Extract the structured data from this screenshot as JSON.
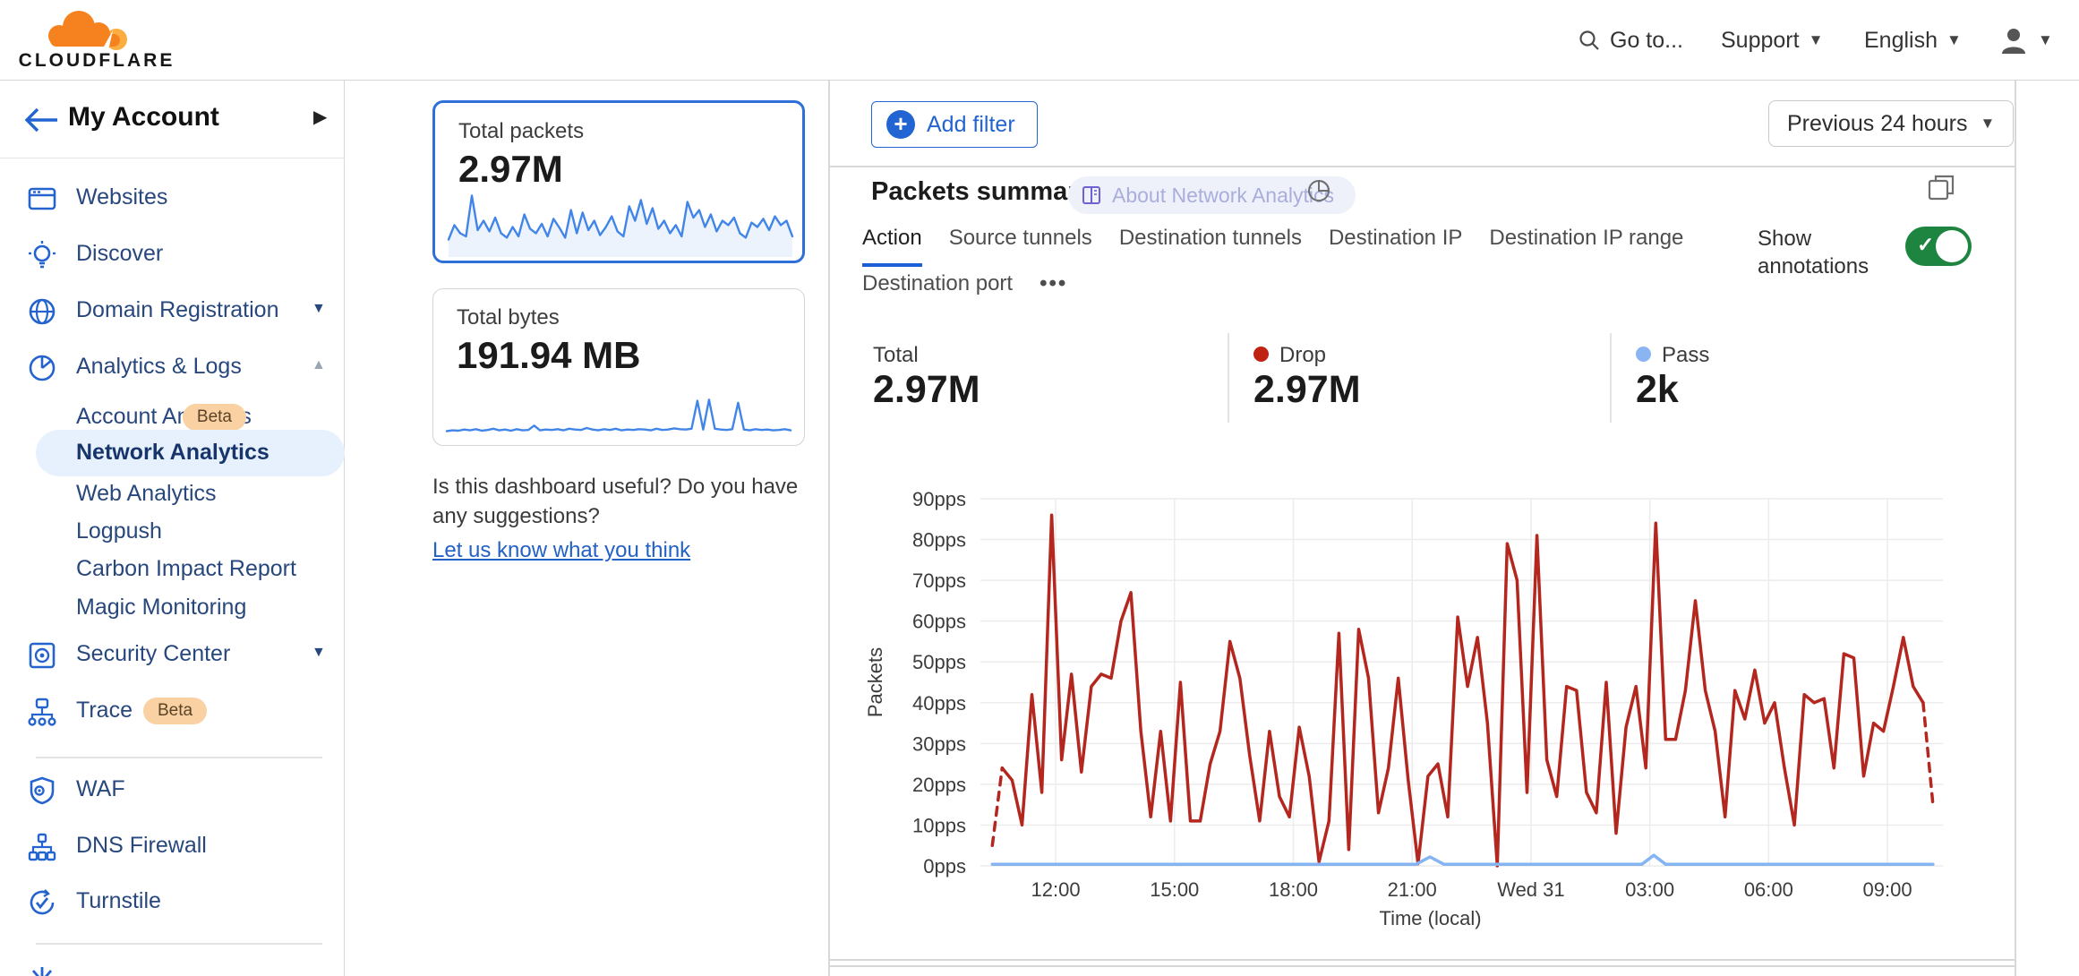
{
  "header": {
    "logo_text": "CLOUDFLARE",
    "goto_label": "Go to...",
    "support_label": "Support",
    "language_label": "English"
  },
  "sidebar": {
    "account_label": "My Account",
    "items": [
      {
        "label": "Websites",
        "icon": "browser-window"
      },
      {
        "label": "Discover",
        "icon": "lightbulb"
      },
      {
        "label": "Domain Registration",
        "icon": "globe",
        "caret": "down"
      },
      {
        "label": "Analytics & Logs",
        "icon": "pie-chart",
        "caret": "up",
        "expanded": true
      },
      {
        "label": "Account Analytics",
        "badge": "Beta",
        "sub": true
      },
      {
        "label": "Network Analytics",
        "sub": true,
        "selected": true
      },
      {
        "label": "Web Analytics",
        "sub": true
      },
      {
        "label": "Logpush",
        "sub": true
      },
      {
        "label": "Carbon Impact Report",
        "sub": true
      },
      {
        "label": "Magic Monitoring",
        "sub": true
      },
      {
        "label": "Security Center",
        "icon": "safe",
        "caret": "down"
      },
      {
        "label": "Trace",
        "icon": "trace-nodes",
        "badge": "Beta"
      },
      {
        "label": "WAF",
        "icon": "shield-gear"
      },
      {
        "label": "DNS Firewall",
        "icon": "hierarchy"
      },
      {
        "label": "Turnstile",
        "icon": "rotate-check"
      }
    ]
  },
  "overview_cards": [
    {
      "title": "Total packets",
      "value": "2.97M",
      "selected": true,
      "spark": {
        "color": "#4285e8",
        "fill": true,
        "values": [
          25,
          48,
          35,
          30,
          95,
          40,
          55,
          38,
          60,
          35,
          28,
          45,
          30,
          65,
          42,
          35,
          50,
          30,
          58,
          44,
          28,
          72,
          35,
          68,
          40,
          55,
          32,
          45,
          62,
          38,
          30,
          78,
          55,
          88,
          50,
          75,
          42,
          55,
          35,
          48,
          30,
          85,
          60,
          72,
          45,
          65,
          38,
          55,
          48,
          60,
          35,
          28,
          52,
          45,
          58,
          40,
          62,
          48,
          55,
          30
        ]
      }
    },
    {
      "title": "Total bytes",
      "value": "191.94 MB",
      "selected": false,
      "spark": {
        "color": "#4285e8",
        "fill": false,
        "values": [
          8,
          10,
          9,
          12,
          10,
          13,
          9,
          11,
          14,
          10,
          12,
          9,
          13,
          10,
          11,
          22,
          10,
          12,
          11,
          13,
          10,
          14,
          12,
          11,
          16,
          12,
          10,
          13,
          11,
          14,
          10,
          12,
          11,
          13,
          12,
          10,
          14,
          11,
          12,
          15,
          13,
          12,
          14,
          85,
          12,
          88,
          14,
          12,
          11,
          13,
          80,
          12,
          10,
          13,
          11,
          12,
          10,
          11,
          13,
          10
        ]
      }
    }
  ],
  "feedback": {
    "question": "Is this dashboard useful? Do you have any suggestions?",
    "link": "Let us know what you think"
  },
  "toolbar": {
    "add_filter_label": "Add filter",
    "time_range_label": "Previous 24 hours"
  },
  "packets_summary": {
    "title": "Packets summary",
    "about_badge": "About Network Analytics",
    "tabs": [
      "Action",
      "Source tunnels",
      "Destination tunnels",
      "Destination IP",
      "Destination IP range",
      "Destination port"
    ],
    "active_tab": "Action",
    "more_tabs": "...",
    "show_annotations_label": "Show annotations",
    "annotations_on": true,
    "toggle_color": "#1e8540",
    "stats": [
      {
        "label": "Total",
        "value": "2.97M",
        "dot": null
      },
      {
        "label": "Drop",
        "value": "2.97M",
        "dot": "#bf2413"
      },
      {
        "label": "Pass",
        "value": "2k",
        "dot": "#8ab5f2"
      }
    ]
  },
  "chart_data": {
    "type": "line",
    "title": "Packets summary",
    "xlabel": "Time (local)",
    "ylabel": "Packets",
    "x_unit_note": "hours of day; 24 = midnight Wed 31",
    "xlim": [
      10.1,
      34.4
    ],
    "ylim": [
      0,
      90
    ],
    "grid": true,
    "legend_position": "none",
    "x_ticks": [
      {
        "v": 12,
        "label": "12:00"
      },
      {
        "v": 15,
        "label": "15:00"
      },
      {
        "v": 18,
        "label": "18:00"
      },
      {
        "v": 21,
        "label": "21:00"
      },
      {
        "v": 24,
        "label": "Wed 31"
      },
      {
        "v": 27,
        "label": "03:00"
      },
      {
        "v": 30,
        "label": "06:00"
      },
      {
        "v": 33,
        "label": "09:00"
      }
    ],
    "y_ticks": [
      {
        "v": 0,
        "label": "0pps"
      },
      {
        "v": 10,
        "label": "10pps"
      },
      {
        "v": 20,
        "label": "20pps"
      },
      {
        "v": 30,
        "label": "30pps"
      },
      {
        "v": 40,
        "label": "40pps"
      },
      {
        "v": 50,
        "label": "50pps"
      },
      {
        "v": 60,
        "label": "60pps"
      },
      {
        "v": 70,
        "label": "70pps"
      },
      {
        "v": 80,
        "label": "80pps"
      },
      {
        "v": 90,
        "label": "90pps"
      }
    ],
    "series": [
      {
        "name": "Drop",
        "color": "#b3271e",
        "width": 3.5,
        "x0": 10.4,
        "dx": 0.25,
        "dash_head": 1,
        "dash_tail": 1,
        "values": [
          5,
          24,
          21,
          10,
          42,
          18,
          86,
          26,
          47,
          23,
          44,
          47,
          46,
          60,
          67,
          33,
          12,
          33,
          11,
          45,
          11,
          11,
          25,
          33,
          55,
          46,
          27,
          11,
          33,
          17,
          12,
          34,
          22,
          1,
          11,
          57,
          4,
          58,
          46,
          13,
          24,
          46,
          21,
          0.5,
          22,
          25,
          12,
          61,
          44,
          56,
          35,
          0,
          79,
          70,
          18,
          81,
          26,
          17,
          44,
          43,
          18,
          13,
          45,
          8,
          34,
          44,
          24,
          84,
          31,
          31,
          43,
          65,
          43,
          33,
          12,
          43,
          36,
          48,
          35,
          40,
          24,
          10,
          42,
          40,
          41,
          24,
          52,
          51,
          22,
          35,
          33,
          44,
          56,
          44,
          40,
          15
        ]
      },
      {
        "name": "Pass",
        "color": "#85b4f2",
        "width": 3.5,
        "points": [
          [
            10.4,
            0.4
          ],
          [
            21.1,
            0.4
          ],
          [
            21.45,
            2.2
          ],
          [
            21.8,
            0.4
          ],
          [
            26.8,
            0.4
          ],
          [
            27.1,
            2.6
          ],
          [
            27.4,
            0.4
          ],
          [
            34.15,
            0.4
          ]
        ]
      }
    ]
  }
}
